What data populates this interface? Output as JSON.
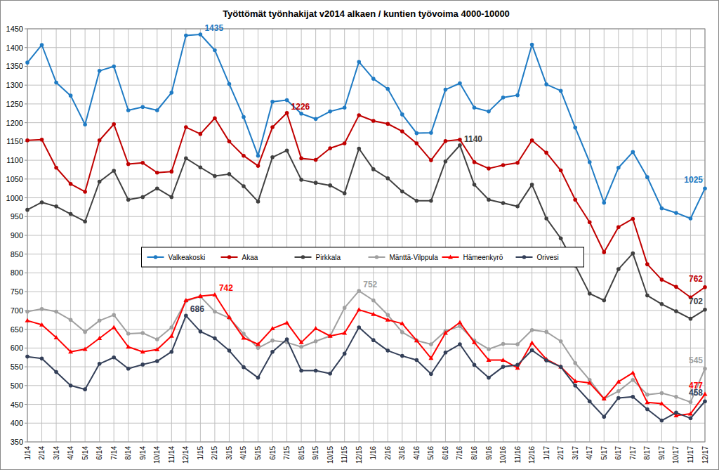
{
  "chart_data": {
    "type": "line",
    "title": "Työttömät työnhakijat v2014 alkaen / kuntien työvoima 4000-10000",
    "categories": [
      "1/14",
      "2/14",
      "3/14",
      "4/14",
      "5/14",
      "6/14",
      "7/14",
      "8/14",
      "9/14",
      "10/14",
      "11/14",
      "12/14",
      "1/15",
      "2/15",
      "3/15",
      "4/15",
      "5/15",
      "6/15",
      "7/15",
      "8/15",
      "9/15",
      "10/15",
      "11/15",
      "12/15",
      "1/16",
      "2/16",
      "3/16",
      "4/16",
      "5/16",
      "6/16",
      "7/16",
      "8/16",
      "9/16",
      "10/16",
      "11/16",
      "12/16",
      "1/17",
      "2/17",
      "3/17",
      "4/17",
      "5/17",
      "6/17",
      "7/17",
      "8/17",
      "9/17",
      "10/17",
      "11/17",
      "12/17"
    ],
    "ylim": [
      350,
      1450
    ],
    "yticks": [
      350,
      400,
      450,
      500,
      550,
      600,
      650,
      700,
      750,
      800,
      850,
      900,
      950,
      1000,
      1050,
      1100,
      1150,
      1200,
      1250,
      1300,
      1350,
      1400,
      1450
    ],
    "grid": true,
    "legend": "center",
    "series": [
      {
        "name": "Valkeakoski",
        "color": "#1f7bc4",
        "marker": "circle",
        "values": [
          1360,
          1407,
          1307,
          1272,
          1195,
          1338,
          1350,
          1233,
          1242,
          1233,
          1280,
          1432,
          1435,
          1393,
          1303,
          1215,
          1112,
          1256,
          1260,
          1224,
          1210,
          1230,
          1240,
          1362,
          1317,
          1290,
          1222,
          1172,
          1173,
          1288,
          1305,
          1240,
          1230,
          1267,
          1273,
          1408,
          1302,
          1285,
          1187,
          1095,
          987,
          1080,
          1122,
          1055,
          972,
          960,
          945,
          1025
        ],
        "value_labels": [
          null,
          null,
          null,
          null,
          null,
          null,
          null,
          null,
          null,
          null,
          null,
          null,
          "1435",
          null,
          null,
          null,
          null,
          null,
          null,
          null,
          null,
          null,
          null,
          null,
          null,
          null,
          null,
          null,
          null,
          null,
          null,
          null,
          null,
          null,
          null,
          null,
          null,
          null,
          null,
          null,
          null,
          null,
          null,
          null,
          null,
          null,
          null,
          "1025"
        ]
      },
      {
        "name": "Akaa",
        "color": "#c00000",
        "marker": "circle",
        "values": [
          1153,
          1155,
          1080,
          1037,
          1016,
          1153,
          1196,
          1090,
          1093,
          1067,
          1070,
          1188,
          1170,
          1212,
          1150,
          1112,
          1085,
          1188,
          1226,
          1105,
          1101,
          1132,
          1145,
          1220,
          1205,
          1197,
          1177,
          1145,
          1100,
          1151,
          1155,
          1095,
          1078,
          1087,
          1093,
          1153,
          1120,
          1073,
          995,
          935,
          855,
          922,
          944,
          823,
          782,
          763,
          735,
          762
        ],
        "value_labels": [
          null,
          null,
          null,
          null,
          null,
          null,
          null,
          null,
          null,
          null,
          null,
          null,
          null,
          null,
          null,
          null,
          null,
          null,
          "1226",
          null,
          null,
          null,
          null,
          null,
          null,
          null,
          null,
          null,
          null,
          null,
          null,
          null,
          null,
          null,
          null,
          null,
          null,
          null,
          null,
          null,
          null,
          null,
          null,
          null,
          null,
          null,
          null,
          "762"
        ]
      },
      {
        "name": "Pirkkala",
        "color": "#404040",
        "marker": "circle",
        "values": [
          968,
          988,
          977,
          957,
          937,
          1043,
          1072,
          995,
          1002,
          1025,
          1002,
          1105,
          1081,
          1058,
          1063,
          1031,
          990,
          1108,
          1126,
          1048,
          1040,
          1033,
          1012,
          1131,
          1076,
          1052,
          1017,
          992,
          992,
          1097,
          1140,
          1035,
          995,
          986,
          977,
          1035,
          945,
          892,
          820,
          745,
          727,
          810,
          852,
          740,
          717,
          698,
          678,
          702
        ],
        "value_labels": [
          null,
          null,
          null,
          null,
          null,
          null,
          null,
          null,
          null,
          null,
          null,
          null,
          null,
          null,
          null,
          null,
          null,
          null,
          null,
          null,
          null,
          null,
          null,
          null,
          null,
          null,
          null,
          null,
          null,
          null,
          "1140",
          null,
          null,
          null,
          null,
          null,
          null,
          null,
          null,
          null,
          null,
          null,
          null,
          null,
          null,
          null,
          null,
          "702"
        ]
      },
      {
        "name": "Mänttä-Vilppula",
        "color": "#a0a0a0",
        "marker": "circle",
        "values": [
          697,
          704,
          697,
          675,
          643,
          673,
          688,
          638,
          640,
          623,
          655,
          725,
          737,
          697,
          680,
          638,
          600,
          620,
          615,
          603,
          618,
          632,
          707,
          752,
          727,
          688,
          642,
          620,
          610,
          645,
          658,
          620,
          597,
          611,
          610,
          648,
          643,
          618,
          560,
          515,
          465,
          485,
          515,
          476,
          480,
          470,
          456,
          545
        ],
        "value_labels": [
          null,
          null,
          null,
          null,
          null,
          null,
          null,
          null,
          null,
          null,
          null,
          null,
          null,
          null,
          null,
          null,
          null,
          null,
          null,
          null,
          null,
          null,
          null,
          "752",
          null,
          null,
          null,
          null,
          null,
          null,
          null,
          null,
          null,
          null,
          null,
          null,
          null,
          null,
          null,
          null,
          null,
          null,
          null,
          null,
          null,
          null,
          null,
          "545"
        ]
      },
      {
        "name": "Hämeenkyrö",
        "color": "#ff0000",
        "marker": "triangle",
        "values": [
          673,
          662,
          628,
          590,
          597,
          626,
          655,
          603,
          590,
          596,
          632,
          727,
          738,
          742,
          682,
          627,
          610,
          652,
          667,
          615,
          652,
          632,
          640,
          702,
          690,
          675,
          665,
          620,
          573,
          640,
          668,
          615,
          568,
          568,
          547,
          614,
          570,
          550,
          512,
          507,
          465,
          510,
          534,
          455,
          452,
          420,
          425,
          477
        ],
        "value_labels": [
          null,
          null,
          null,
          null,
          null,
          null,
          null,
          null,
          null,
          null,
          null,
          null,
          null,
          "742",
          null,
          null,
          null,
          null,
          null,
          null,
          null,
          null,
          null,
          null,
          null,
          null,
          null,
          null,
          null,
          null,
          null,
          null,
          null,
          null,
          null,
          null,
          null,
          null,
          null,
          null,
          null,
          null,
          null,
          null,
          null,
          null,
          null,
          "477"
        ]
      },
      {
        "name": "Orivesi",
        "color": "#333f58",
        "marker": "circle",
        "values": [
          577,
          572,
          536,
          500,
          490,
          558,
          575,
          545,
          556,
          565,
          590,
          686,
          644,
          626,
          593,
          549,
          521,
          590,
          623,
          540,
          540,
          532,
          585,
          655,
          621,
          593,
          579,
          568,
          531,
          588,
          610,
          555,
          521,
          550,
          555,
          594,
          567,
          550,
          500,
          458,
          417,
          467,
          470,
          437,
          407,
          428,
          413,
          458
        ],
        "value_labels": [
          null,
          null,
          null,
          null,
          null,
          null,
          null,
          null,
          null,
          null,
          null,
          686,
          null,
          null,
          null,
          null,
          null,
          null,
          null,
          null,
          null,
          null,
          null,
          null,
          null,
          null,
          null,
          null,
          null,
          null,
          null,
          null,
          null,
          null,
          null,
          null,
          null,
          null,
          null,
          null,
          null,
          null,
          null,
          null,
          null,
          null,
          null,
          "458"
        ]
      }
    ]
  }
}
